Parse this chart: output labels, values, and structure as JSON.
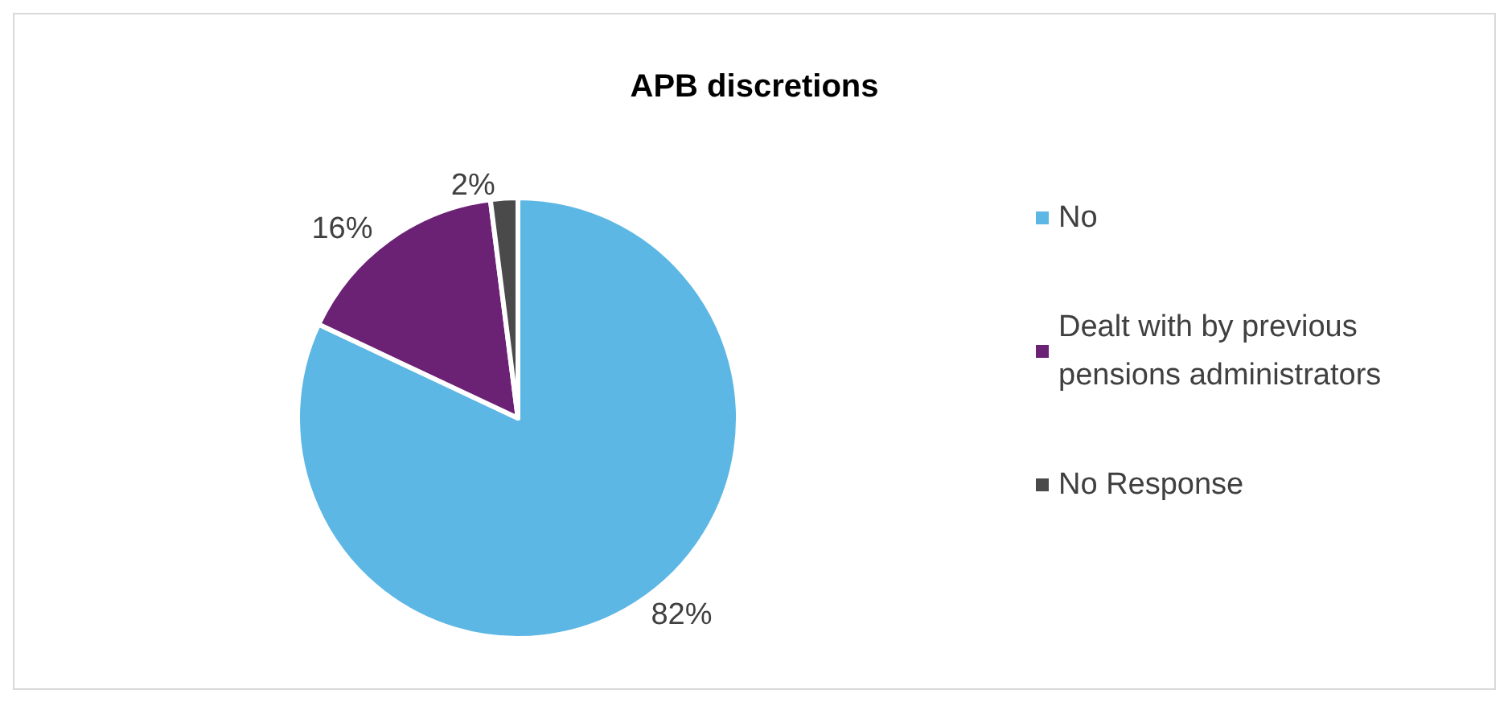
{
  "chart_data": {
    "type": "pie",
    "title": "APB discretions",
    "categories": [
      "No",
      "Dealt with by previous pensions administrators",
      "No Response"
    ],
    "values": [
      82,
      16,
      2
    ],
    "colors": [
      "#5db7e4",
      "#6b2275",
      "#4a4a4a"
    ],
    "value_labels": [
      "82%",
      "16%",
      "2%"
    ],
    "legend": "right"
  }
}
